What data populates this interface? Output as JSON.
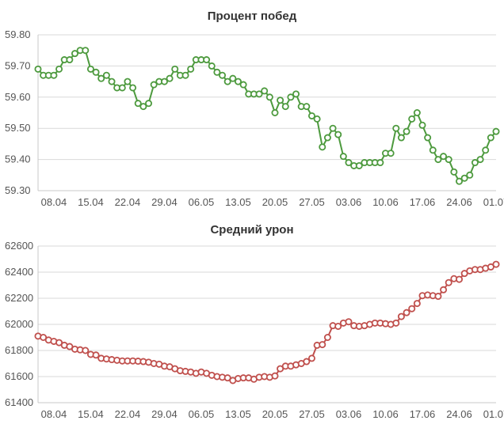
{
  "charts": [
    {
      "title": "Процент побед",
      "color": "#4d9a3e",
      "chart_data": {
        "type": "line",
        "title": "Процент побед",
        "xlabel": "",
        "ylabel": "",
        "ylim": [
          59.3,
          59.8
        ],
        "y_ticks": [
          "59.30",
          "59.40",
          "59.50",
          "59.60",
          "59.70",
          "59.80"
        ],
        "x_tick_labels": [
          "08.04",
          "15.04",
          "22.04",
          "29.04",
          "06.05",
          "13.05",
          "20.05",
          "27.05",
          "03.06",
          "10.06",
          "17.06",
          "24.06",
          "01.07"
        ],
        "x_tick_indices": [
          3,
          10,
          17,
          24,
          31,
          38,
          45,
          52,
          59,
          66,
          73,
          80,
          87
        ],
        "grid": true,
        "legend": "none",
        "series": [
          {
            "color": "#4d9a3e",
            "values": [
              59.69,
              59.67,
              59.67,
              59.67,
              59.69,
              59.72,
              59.72,
              59.74,
              59.75,
              59.75,
              59.69,
              59.68,
              59.66,
              59.67,
              59.65,
              59.63,
              59.63,
              59.65,
              59.63,
              59.58,
              59.57,
              59.58,
              59.64,
              59.65,
              59.65,
              59.66,
              59.69,
              59.67,
              59.67,
              59.69,
              59.72,
              59.72,
              59.72,
              59.7,
              59.68,
              59.67,
              59.65,
              59.66,
              59.65,
              59.64,
              59.61,
              59.61,
              59.61,
              59.62,
              59.6,
              59.55,
              59.59,
              59.57,
              59.6,
              59.61,
              59.57,
              59.57,
              59.54,
              59.53,
              59.44,
              59.47,
              59.5,
              59.48,
              59.41,
              59.39,
              59.38,
              59.38,
              59.39,
              59.39,
              59.39,
              59.39,
              59.42,
              59.42,
              59.5,
              59.47,
              59.49,
              59.53,
              59.55,
              59.51,
              59.47,
              59.43,
              59.4,
              59.41,
              59.4,
              59.36,
              59.33,
              59.34,
              59.35,
              59.39,
              59.4,
              59.43,
              59.47,
              59.49
            ]
          }
        ]
      }
    },
    {
      "title": "Средний урон",
      "color": "#c0504d",
      "chart_data": {
        "type": "line",
        "title": "Средний урон",
        "xlabel": "",
        "ylabel": "",
        "ylim": [
          61400,
          62600
        ],
        "y_ticks": [
          "61400",
          "61600",
          "61800",
          "62000",
          "62200",
          "62400",
          "62600"
        ],
        "x_tick_labels": [
          "08.04",
          "15.04",
          "22.04",
          "29.04",
          "06.05",
          "13.05",
          "20.05",
          "27.05",
          "03.06",
          "10.06",
          "17.06",
          "24.06",
          "01.07"
        ],
        "x_tick_indices": [
          3,
          10,
          17,
          24,
          31,
          38,
          45,
          52,
          59,
          66,
          73,
          80,
          87
        ],
        "grid": true,
        "legend": "none",
        "series": [
          {
            "color": "#c0504d",
            "values": [
              61910,
              61900,
              61880,
              61870,
              61860,
              61840,
              61830,
              61810,
              61805,
              61800,
              61770,
              61765,
              61740,
              61735,
              61730,
              61725,
              61720,
              61720,
              61720,
              61718,
              61715,
              61710,
              61700,
              61695,
              61680,
              61675,
              61660,
              61645,
              61640,
              61635,
              61625,
              61635,
              61625,
              61610,
              61600,
              61595,
              61590,
              61570,
              61585,
              61590,
              61590,
              61580,
              61595,
              61600,
              61595,
              61605,
              61660,
              61680,
              61680,
              61690,
              61700,
              61715,
              61740,
              61840,
              61845,
              61900,
              61990,
              61985,
              62010,
              62020,
              61990,
              61985,
              61990,
              62000,
              62010,
              62010,
              62005,
              62000,
              62010,
              62060,
              62090,
              62120,
              62160,
              62220,
              62225,
              62220,
              62215,
              62265,
              62320,
              62350,
              62345,
              62390,
              62410,
              62420,
              62420,
              62430,
              62440,
              62460
            ]
          }
        ]
      }
    }
  ]
}
